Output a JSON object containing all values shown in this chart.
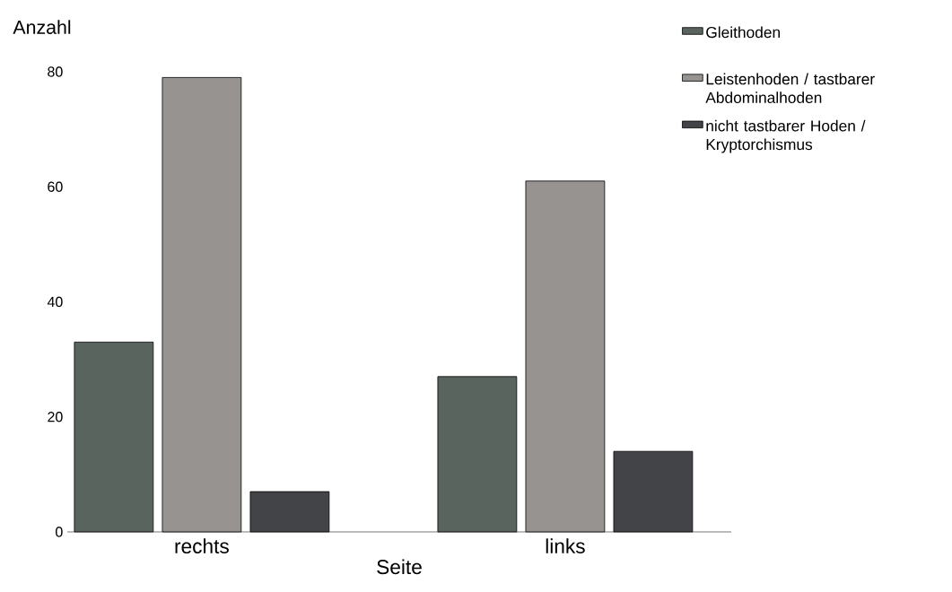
{
  "chart_data": {
    "type": "bar",
    "xlabel": "Seite",
    "ylabel": "Anzahl",
    "categories": [
      "rechts",
      "links"
    ],
    "series": [
      {
        "name": "Gleithoden",
        "color": "#5a645e",
        "values": [
          33,
          27
        ]
      },
      {
        "name": "Leistenhoden / tastbarer Abdominalhoden",
        "color": "#979391",
        "values": [
          79,
          61
        ]
      },
      {
        "name": "nicht tastbarer Hoden / Kryptorchismus",
        "color": "#434447",
        "values": [
          7,
          14
        ]
      }
    ],
    "ylim": [
      0,
      80
    ],
    "yticks": [
      0,
      20,
      40,
      60,
      80
    ],
    "grid": false,
    "legend": "top right"
  }
}
